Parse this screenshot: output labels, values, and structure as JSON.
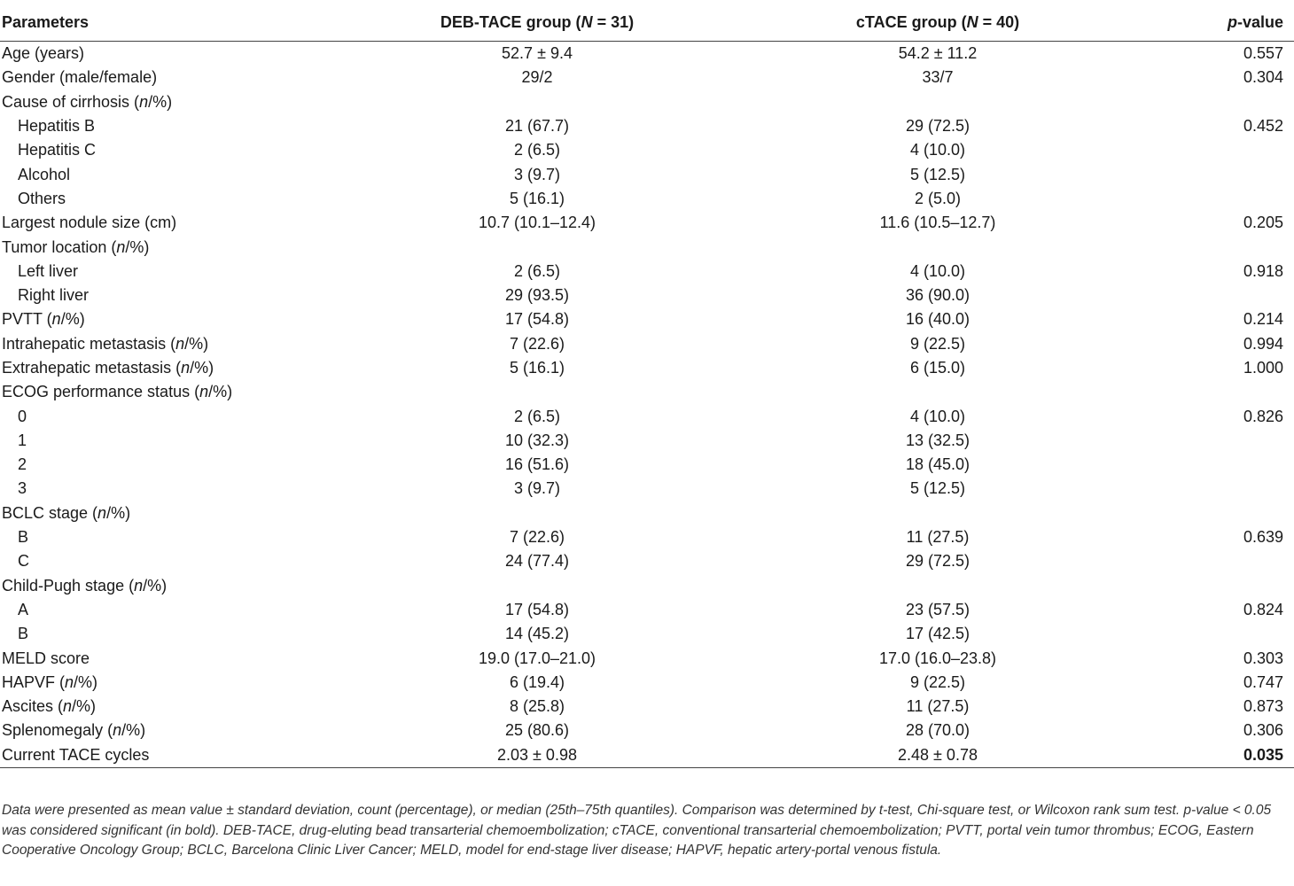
{
  "table": {
    "headers": {
      "parameters": "Parameters",
      "deb_prefix": "DEB-TACE group (",
      "deb_n": "N",
      "deb_suffix": " = 31)",
      "ctace_prefix": "cTACE group (",
      "ctace_n": "N",
      "ctace_suffix": " = 40)",
      "p_italic": "p",
      "p_suffix": "-value"
    },
    "rows": [
      {
        "label": "Age (years)",
        "label_italic": "",
        "label_suffix": "",
        "deb": "52.7 ± 9.4",
        "ctace": "54.2 ± 11.2",
        "p": "0.557"
      },
      {
        "label": "Gender (male/female)",
        "label_italic": "",
        "label_suffix": "",
        "deb": "29/2",
        "ctace": "33/7",
        "p": "0.304"
      },
      {
        "label": "Cause of cirrhosis (",
        "label_italic": "n",
        "label_suffix": "/%)",
        "deb": "",
        "ctace": "",
        "p": ""
      },
      {
        "label": "Hepatitis B",
        "label_italic": "",
        "label_suffix": "",
        "deb": "21 (67.7)",
        "ctace": "29 (72.5)",
        "p": "0.452"
      },
      {
        "label": "Hepatitis C",
        "label_italic": "",
        "label_suffix": "",
        "deb": "2 (6.5)",
        "ctace": "4 (10.0)",
        "p": ""
      },
      {
        "label": "Alcohol",
        "label_italic": "",
        "label_suffix": "",
        "deb": "3 (9.7)",
        "ctace": "5 (12.5)",
        "p": ""
      },
      {
        "label": "Others",
        "label_italic": "",
        "label_suffix": "",
        "deb": "5 (16.1)",
        "ctace": "2 (5.0)",
        "p": ""
      },
      {
        "label": "Largest nodule size (cm)",
        "label_italic": "",
        "label_suffix": "",
        "deb": "10.7 (10.1–12.4)",
        "ctace": "11.6 (10.5–12.7)",
        "p": "0.205"
      },
      {
        "label": "Tumor location (",
        "label_italic": "n",
        "label_suffix": "/%)",
        "deb": "",
        "ctace": "",
        "p": ""
      },
      {
        "label": "Left liver",
        "label_italic": "",
        "label_suffix": "",
        "deb": "2 (6.5)",
        "ctace": "4 (10.0)",
        "p": "0.918"
      },
      {
        "label": "Right liver",
        "label_italic": "",
        "label_suffix": "",
        "deb": "29 (93.5)",
        "ctace": "36 (90.0)",
        "p": ""
      },
      {
        "label": "PVTT (",
        "label_italic": "n",
        "label_suffix": "/%)",
        "deb": "17 (54.8)",
        "ctace": "16 (40.0)",
        "p": "0.214"
      },
      {
        "label": "Intrahepatic metastasis (",
        "label_italic": "n",
        "label_suffix": "/%)",
        "deb": "7 (22.6)",
        "ctace": "9 (22.5)",
        "p": "0.994"
      },
      {
        "label": "Extrahepatic metastasis (",
        "label_italic": "n",
        "label_suffix": "/%)",
        "deb": "5 (16.1)",
        "ctace": "6 (15.0)",
        "p": "1.000"
      },
      {
        "label": "ECOG performance status (",
        "label_italic": "n",
        "label_suffix": "/%)",
        "deb": "",
        "ctace": "",
        "p": ""
      },
      {
        "label": "0",
        "label_italic": "",
        "label_suffix": "",
        "deb": "2 (6.5)",
        "ctace": "4 (10.0)",
        "p": "0.826"
      },
      {
        "label": "1",
        "label_italic": "",
        "label_suffix": "",
        "deb": "10 (32.3)",
        "ctace": "13 (32.5)",
        "p": ""
      },
      {
        "label": "2",
        "label_italic": "",
        "label_suffix": "",
        "deb": "16 (51.6)",
        "ctace": "18 (45.0)",
        "p": ""
      },
      {
        "label": "3",
        "label_italic": "",
        "label_suffix": "",
        "deb": "3 (9.7)",
        "ctace": "5 (12.5)",
        "p": ""
      },
      {
        "label": "BCLC stage (",
        "label_italic": "n",
        "label_suffix": "/%)",
        "deb": "",
        "ctace": "",
        "p": ""
      },
      {
        "label": "B",
        "label_italic": "",
        "label_suffix": "",
        "deb": "7 (22.6)",
        "ctace": "11 (27.5)",
        "p": "0.639"
      },
      {
        "label": "C",
        "label_italic": "",
        "label_suffix": "",
        "deb": "24 (77.4)",
        "ctace": "29 (72.5)",
        "p": ""
      },
      {
        "label": "Child-Pugh stage (",
        "label_italic": "n",
        "label_suffix": "/%)",
        "deb": "",
        "ctace": "",
        "p": ""
      },
      {
        "label": "A",
        "label_italic": "",
        "label_suffix": "",
        "deb": "17 (54.8)",
        "ctace": "23 (57.5)",
        "p": "0.824"
      },
      {
        "label": "B",
        "label_italic": "",
        "label_suffix": "",
        "deb": "14 (45.2)",
        "ctace": "17 (42.5)",
        "p": ""
      },
      {
        "label": "MELD score",
        "label_italic": "",
        "label_suffix": "",
        "deb": "19.0 (17.0–21.0)",
        "ctace": "17.0 (16.0–23.8)",
        "p": "0.303"
      },
      {
        "label": "HAPVF (",
        "label_italic": "n",
        "label_suffix": "/%)",
        "deb": "6 (19.4)",
        "ctace": "9 (22.5)",
        "p": "0.747"
      },
      {
        "label": "Ascites (",
        "label_italic": "n",
        "label_suffix": "/%)",
        "deb": "8 (25.8)",
        "ctace": "11 (27.5)",
        "p": "0.873"
      },
      {
        "label": "Splenomegaly (",
        "label_italic": "n",
        "label_suffix": "/%)",
        "deb": "25 (80.6)",
        "ctace": "28 (70.0)",
        "p": "0.306"
      },
      {
        "label": "Current TACE cycles",
        "label_italic": "",
        "label_suffix": "",
        "deb": "2.03 ± 0.98",
        "ctace": "2.48 ± 0.78",
        "p": "0.035"
      }
    ]
  },
  "footnote": "Data were presented as mean value ± standard deviation, count (percentage), or median (25th–75th quantiles). Comparison was determined by t-test, Chi-square test, or Wilcoxon rank sum test. p-value < 0.05 was considered significant (in bold). DEB-TACE, drug-eluting bead transarterial chemoembolization; cTACE, conventional transarterial chemoembolization; PVTT, portal vein tumor thrombus; ECOG, Eastern Cooperative Oncology Group; BCLC, Barcelona Clinic Liver Cancer; MELD, model for end-stage liver disease; HAPVF, hepatic artery-portal venous fistula."
}
